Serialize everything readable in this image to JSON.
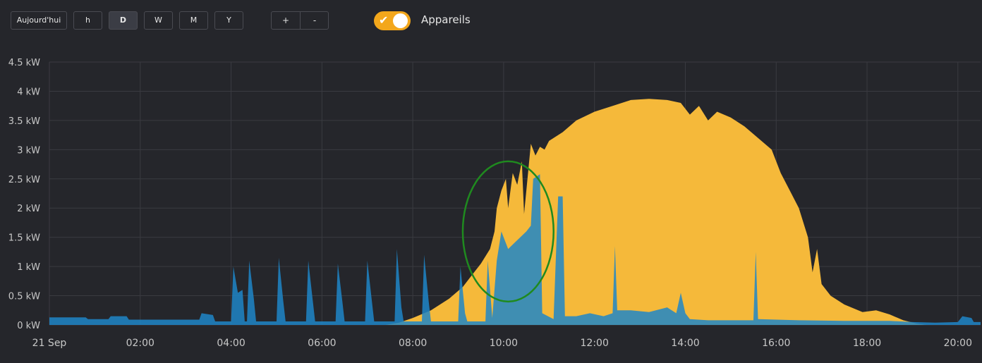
{
  "toolbar": {
    "today_label": "Aujourd'hui",
    "hour_label": "h",
    "day_label": "D",
    "week_label": "W",
    "month_label": "M",
    "year_label": "Y",
    "zoom_in_label": "+",
    "zoom_out_label": "-",
    "devices_toggle_label": "Appareils",
    "devices_toggle_on": true,
    "active_period": "D"
  },
  "colors": {
    "production": "#f5b93a",
    "consumption": "#1f86c8",
    "overlap": "#4aa1bf",
    "annotation": "#1f8a1f",
    "toggle": "#f3a71b",
    "background": "#25262b",
    "grid": "#3a3b41"
  },
  "chart_data": {
    "type": "area",
    "title": "",
    "xlabel": "",
    "ylabel": "",
    "x_unit": "hours",
    "xlim": [
      0,
      20.5
    ],
    "ylim": [
      0,
      4.5
    ],
    "y_ticks": [
      "0 kW",
      "0.5 kW",
      "1 kW",
      "1.5 kW",
      "2 kW",
      "2.5 kW",
      "3 kW",
      "3.5 kW",
      "4 kW",
      "4.5 kW"
    ],
    "x_ticks": [
      "21 Sep",
      "02:00",
      "04:00",
      "06:00",
      "08:00",
      "10:00",
      "12:00",
      "14:00",
      "16:00",
      "18:00",
      "20:00"
    ],
    "grid": true,
    "series": [
      {
        "color": "#f5b93a",
        "points": [
          [
            0,
            0
          ],
          [
            7.4,
            0
          ],
          [
            7.7,
            0.04
          ],
          [
            8.0,
            0.12
          ],
          [
            8.4,
            0.25
          ],
          [
            8.8,
            0.45
          ],
          [
            9.1,
            0.65
          ],
          [
            9.3,
            0.85
          ],
          [
            9.5,
            1.05
          ],
          [
            9.7,
            1.3
          ],
          [
            9.8,
            1.6
          ],
          [
            9.85,
            2.0
          ],
          [
            9.95,
            2.3
          ],
          [
            10.05,
            2.5
          ],
          [
            10.1,
            2.0
          ],
          [
            10.2,
            2.6
          ],
          [
            10.3,
            2.4
          ],
          [
            10.4,
            2.8
          ],
          [
            10.45,
            1.9
          ],
          [
            10.55,
            2.7
          ],
          [
            10.6,
            3.1
          ],
          [
            10.7,
            2.9
          ],
          [
            10.8,
            3.05
          ],
          [
            10.9,
            3.0
          ],
          [
            11.0,
            3.15
          ],
          [
            11.3,
            3.3
          ],
          [
            11.6,
            3.5
          ],
          [
            12.0,
            3.65
          ],
          [
            12.4,
            3.75
          ],
          [
            12.8,
            3.85
          ],
          [
            13.2,
            3.87
          ],
          [
            13.6,
            3.85
          ],
          [
            13.9,
            3.8
          ],
          [
            14.1,
            3.6
          ],
          [
            14.3,
            3.75
          ],
          [
            14.5,
            3.5
          ],
          [
            14.7,
            3.65
          ],
          [
            15.0,
            3.55
          ],
          [
            15.3,
            3.4
          ],
          [
            15.6,
            3.2
          ],
          [
            15.9,
            3.0
          ],
          [
            16.1,
            2.6
          ],
          [
            16.3,
            2.3
          ],
          [
            16.5,
            2.0
          ],
          [
            16.7,
            1.5
          ],
          [
            16.8,
            0.9
          ],
          [
            16.9,
            1.3
          ],
          [
            17.0,
            0.7
          ],
          [
            17.2,
            0.5
          ],
          [
            17.5,
            0.35
          ],
          [
            17.9,
            0.22
          ],
          [
            18.2,
            0.25
          ],
          [
            18.5,
            0.18
          ],
          [
            18.8,
            0.08
          ],
          [
            19.1,
            0.02
          ],
          [
            19.3,
            0
          ],
          [
            20.5,
            0
          ]
        ]
      },
      {
        "color": "#1f86c8",
        "points": [
          [
            0,
            0.13
          ],
          [
            0.8,
            0.13
          ],
          [
            0.85,
            0.1
          ],
          [
            1.3,
            0.1
          ],
          [
            1.35,
            0.15
          ],
          [
            1.7,
            0.15
          ],
          [
            1.75,
            0.09
          ],
          [
            3.3,
            0.09
          ],
          [
            3.35,
            0.2
          ],
          [
            3.6,
            0.17
          ],
          [
            3.65,
            0.06
          ],
          [
            4.0,
            0.06
          ],
          [
            4.05,
            1.0
          ],
          [
            4.15,
            0.55
          ],
          [
            4.25,
            0.6
          ],
          [
            4.3,
            0.06
          ],
          [
            4.35,
            0.06
          ],
          [
            4.4,
            1.1
          ],
          [
            4.5,
            0.45
          ],
          [
            4.55,
            0.06
          ],
          [
            5.0,
            0.06
          ],
          [
            5.05,
            1.15
          ],
          [
            5.15,
            0.4
          ],
          [
            5.2,
            0.06
          ],
          [
            5.65,
            0.06
          ],
          [
            5.7,
            1.1
          ],
          [
            5.8,
            0.4
          ],
          [
            5.85,
            0.06
          ],
          [
            6.3,
            0.06
          ],
          [
            6.35,
            1.05
          ],
          [
            6.45,
            0.4
          ],
          [
            6.5,
            0.06
          ],
          [
            6.95,
            0.06
          ],
          [
            7.0,
            1.1
          ],
          [
            7.1,
            0.4
          ],
          [
            7.15,
            0.06
          ],
          [
            7.6,
            0.06
          ],
          [
            7.65,
            1.3
          ],
          [
            7.75,
            0.3
          ],
          [
            7.8,
            0.06
          ],
          [
            8.2,
            0.06
          ],
          [
            8.25,
            1.2
          ],
          [
            8.35,
            0.4
          ],
          [
            8.4,
            0.06
          ],
          [
            9.0,
            0.06
          ],
          [
            9.05,
            1.0
          ],
          [
            9.15,
            0.2
          ],
          [
            9.2,
            0.06
          ],
          [
            9.6,
            0.06
          ],
          [
            9.65,
            1.1
          ],
          [
            9.75,
            0.12
          ],
          [
            9.85,
            1.1
          ],
          [
            9.95,
            1.6
          ],
          [
            10.1,
            1.3
          ],
          [
            10.3,
            1.45
          ],
          [
            10.5,
            1.6
          ],
          [
            10.6,
            1.7
          ],
          [
            10.65,
            2.5
          ],
          [
            10.8,
            2.58
          ],
          [
            10.85,
            0.2
          ],
          [
            11.1,
            0.1
          ],
          [
            11.2,
            2.2
          ],
          [
            11.3,
            2.2
          ],
          [
            11.35,
            0.15
          ],
          [
            11.6,
            0.15
          ],
          [
            11.9,
            0.2
          ],
          [
            12.2,
            0.15
          ],
          [
            12.4,
            0.2
          ],
          [
            12.45,
            1.35
          ],
          [
            12.5,
            0.25
          ],
          [
            12.8,
            0.25
          ],
          [
            13.2,
            0.22
          ],
          [
            13.6,
            0.3
          ],
          [
            13.8,
            0.2
          ],
          [
            13.9,
            0.55
          ],
          [
            14.0,
            0.2
          ],
          [
            14.1,
            0.1
          ],
          [
            14.5,
            0.08
          ],
          [
            15.0,
            0.08
          ],
          [
            15.5,
            0.08
          ],
          [
            15.55,
            1.25
          ],
          [
            15.6,
            0.1
          ],
          [
            16.5,
            0.08
          ],
          [
            17.5,
            0.07
          ],
          [
            18.5,
            0.07
          ],
          [
            19.0,
            0.05
          ],
          [
            19.5,
            0.04
          ],
          [
            20.0,
            0.05
          ],
          [
            20.1,
            0.15
          ],
          [
            20.3,
            0.12
          ],
          [
            20.35,
            0.05
          ],
          [
            20.5,
            0.05
          ]
        ]
      }
    ],
    "annotation": {
      "type": "ellipse",
      "center": [
        10.1,
        1.6
      ],
      "rx_hours": 1.0,
      "ry_kw": 1.2
    }
  }
}
